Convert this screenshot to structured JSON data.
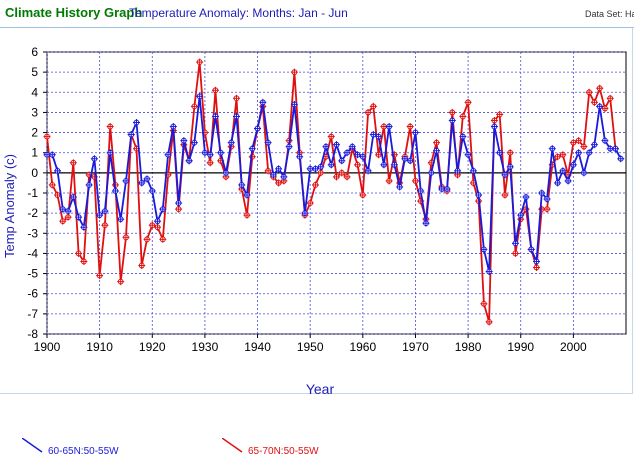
{
  "header": {
    "app_title": "Climate History Graph",
    "subtitle": "Temperature Anomaly: Months: Jan - Jun",
    "dataset_label": "Data Set: Ha"
  },
  "colors": {
    "series1": "#1a1adb",
    "series2": "#e01010",
    "grid": "#4a4ae0",
    "axis_text": "#000000",
    "axis_label": "#1d1db5"
  },
  "chart_data": {
    "type": "line",
    "title": "",
    "xlabel": "Year",
    "ylabel": "Temp Anomaly (c)",
    "xlim": [
      1900,
      2010
    ],
    "ylim": [
      -8,
      6
    ],
    "x_ticks": [
      1900,
      1910,
      1920,
      1930,
      1940,
      1950,
      1960,
      1970,
      1980,
      1990,
      2000
    ],
    "y_ticks": [
      6,
      5,
      4,
      3,
      2,
      1,
      0,
      -1,
      -2,
      -3,
      -4,
      -5,
      -6,
      -7,
      -8
    ],
    "grid": true,
    "legend_position": "bottom",
    "series": [
      {
        "name": "60-65N:50-55W",
        "x": [
          1900,
          1901,
          1902,
          1903,
          1904,
          1905,
          1906,
          1907,
          1908,
          1909,
          1910,
          1911,
          1912,
          1913,
          1914,
          1915,
          1916,
          1917,
          1918,
          1919,
          1920,
          1921,
          1922,
          1923,
          1924,
          1925,
          1926,
          1927,
          1928,
          1929,
          1930,
          1931,
          1932,
          1933,
          1934,
          1935,
          1936,
          1937,
          1938,
          1939,
          1940,
          1941,
          1942,
          1943,
          1944,
          1945,
          1946,
          1947,
          1948,
          1949,
          1950,
          1951,
          1952,
          1953,
          1954,
          1955,
          1956,
          1957,
          1958,
          1959,
          1960,
          1961,
          1962,
          1963,
          1964,
          1965,
          1966,
          1967,
          1968,
          1969,
          1970,
          1971,
          1972,
          1973,
          1974,
          1975,
          1976,
          1977,
          1978,
          1979,
          1980,
          1981,
          1982,
          1983,
          1984,
          1985,
          1986,
          1987,
          1988,
          1989,
          1990,
          1991,
          1992,
          1993,
          1994,
          1995,
          1996,
          1997,
          1998,
          1999,
          2000,
          2001,
          2002,
          2003,
          2004,
          2005,
          2006,
          2007,
          2008,
          2009
        ],
        "y": [
          0.9,
          0.9,
          0.1,
          -1.8,
          -1.9,
          -1.2,
          -2.2,
          -2.7,
          -0.6,
          0.7,
          -2.1,
          -1.9,
          1.0,
          -0.9,
          -2.3,
          -0.4,
          1.9,
          2.5,
          -0.5,
          -0.3,
          -0.9,
          -2.4,
          -1.8,
          0.9,
          2.3,
          -1.5,
          1.6,
          0.6,
          1.5,
          3.8,
          1.0,
          0.9,
          2.8,
          1.0,
          0.0,
          1.5,
          2.8,
          -0.6,
          -1.1,
          1.2,
          2.2,
          3.5,
          1.5,
          -0.1,
          0.2,
          -0.2,
          1.3,
          3.4,
          0.8,
          -2.0,
          0.2,
          0.2,
          0.3,
          1.3,
          0.4,
          1.4,
          0.6,
          1.0,
          1.3,
          0.9,
          0.8,
          0.1,
          1.9,
          1.8,
          0.4,
          2.3,
          0.4,
          -0.7,
          0.7,
          0.6,
          2.0,
          -0.9,
          -2.5,
          0.0,
          1.1,
          -0.8,
          -0.8,
          2.6,
          0.1,
          1.8,
          0.9,
          0.1,
          -1.1,
          -3.8,
          -4.9,
          2.3,
          1.0,
          -0.1,
          0.3,
          -3.5,
          -2.1,
          -1.2,
          -3.8,
          -4.4,
          -1.0,
          -1.3,
          1.2,
          -0.5,
          0.1,
          -0.4,
          0.4,
          1.0,
          0.0,
          1.0,
          1.4,
          3.3,
          1.6,
          1.2,
          1.2,
          0.7
        ]
      },
      {
        "name": "65-70N:50-55W",
        "x": [
          1900,
          1901,
          1902,
          1903,
          1904,
          1905,
          1906,
          1907,
          1908,
          1909,
          1910,
          1911,
          1912,
          1913,
          1914,
          1915,
          1916,
          1917,
          1918,
          1919,
          1920,
          1921,
          1922,
          1923,
          1924,
          1925,
          1926,
          1927,
          1928,
          1929,
          1930,
          1931,
          1932,
          1933,
          1934,
          1935,
          1936,
          1937,
          1938,
          1939,
          1940,
          1941,
          1942,
          1943,
          1944,
          1945,
          1946,
          1947,
          1948,
          1949,
          1950,
          1951,
          1952,
          1953,
          1954,
          1955,
          1956,
          1957,
          1958,
          1959,
          1960,
          1961,
          1962,
          1963,
          1964,
          1965,
          1966,
          1967,
          1968,
          1969,
          1970,
          1971,
          1972,
          1973,
          1974,
          1975,
          1976,
          1977,
          1978,
          1979,
          1980,
          1981,
          1982,
          1983,
          1984,
          1985,
          1986,
          1987,
          1988,
          1989,
          1990,
          1991,
          1992,
          1993,
          1994,
          1995,
          1996,
          1997,
          1998,
          1999,
          2000,
          2001,
          2002,
          2003,
          2004,
          2005,
          2006,
          2007,
          2008
        ],
        "y": [
          1.8,
          -0.6,
          -1.1,
          -2.4,
          -2.2,
          0.5,
          -4.0,
          -4.4,
          -0.1,
          -0.2,
          -5.1,
          -2.6,
          2.3,
          -0.6,
          -5.4,
          -3.2,
          1.9,
          1.2,
          -4.6,
          -3.3,
          -2.6,
          -2.7,
          -3.3,
          -0.1,
          2.1,
          -1.8,
          1.4,
          0.6,
          3.3,
          5.5,
          2.0,
          0.5,
          4.1,
          0.6,
          -0.2,
          1.3,
          3.7,
          -0.8,
          -2.1,
          0.8,
          2.2,
          3.3,
          0.1,
          -0.2,
          -0.5,
          -0.4,
          1.6,
          5.0,
          1.0,
          -2.1,
          -1.5,
          -0.6,
          0.0,
          0.8,
          1.8,
          -0.2,
          0.0,
          -0.2,
          1.2,
          0.4,
          -1.1,
          3.0,
          3.3,
          0.9,
          2.3,
          -0.4,
          0.9,
          -0.5,
          0.8,
          2.3,
          -0.4,
          -1.4,
          -2.3,
          0.5,
          1.5,
          -0.7,
          -0.9,
          3.0,
          -0.1,
          2.8,
          3.5,
          -0.5,
          -1.4,
          -6.5,
          -7.4,
          2.6,
          2.9,
          -1.1,
          1.0,
          -4.0,
          -2.3,
          -1.8,
          -3.8,
          -4.7,
          -1.8,
          -1.8,
          0.4,
          0.8,
          0.9,
          -0.1,
          1.5,
          1.6,
          1.3,
          4.0,
          3.5,
          4.2,
          3.2,
          3.7,
          1.2
        ]
      }
    ]
  }
}
